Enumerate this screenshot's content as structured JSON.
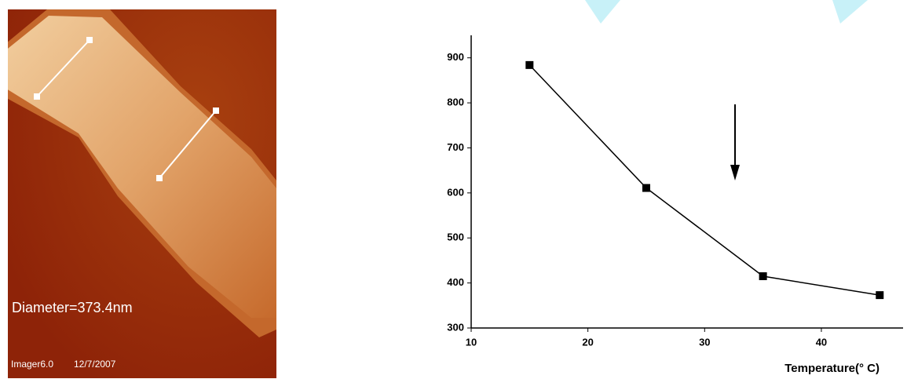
{
  "image": {
    "caption": "Diameter=373.4nm",
    "software": "Imager6.0",
    "date": "12/7/2007"
  },
  "chart_data": {
    "type": "line",
    "x_label": "Temperature(° C)",
    "x": [
      15,
      25,
      35,
      45
    ],
    "series": [
      {
        "color": "#000000",
        "values": [
          884,
          611,
          415,
          373
        ]
      }
    ],
    "xlim": [
      10,
      47
    ],
    "xticks": [
      10,
      20,
      30,
      40
    ],
    "ylim": [
      300,
      950
    ],
    "yticks": [
      300,
      400,
      500,
      600,
      700,
      800,
      900
    ],
    "grid": false,
    "marker": "square"
  }
}
